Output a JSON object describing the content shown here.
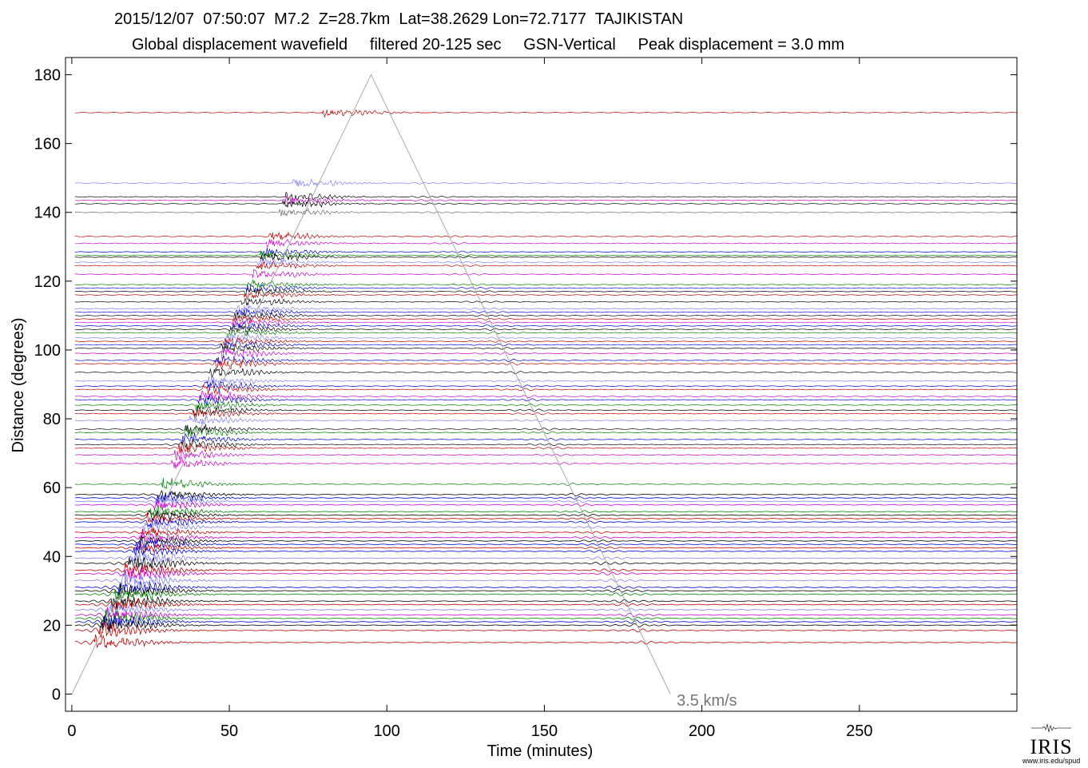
{
  "header": {
    "line1": "2015/12/07  07:50:07  M7.2  Z=28.7km  Lat=38.2629 Lon=72.7177  TAJIKISTAN",
    "line2": "Global displacement wavefield     filtered 20-125 sec     GSN-Vertical     Peak displacement = 3.0 mm"
  },
  "logo": {
    "word": "IRIS",
    "url": "www.iris.edu/spud"
  },
  "chart_data": {
    "type": "line",
    "xlabel": "Time (minutes)",
    "ylabel": "Distance (degrees)",
    "xlim": [
      -2,
      300
    ],
    "ylim": [
      -5,
      185
    ],
    "xticks": [
      "0",
      "50",
      "100",
      "150",
      "200",
      "250"
    ],
    "yticks": [
      "0",
      "20",
      "40",
      "60",
      "80",
      "100",
      "120",
      "140",
      "160",
      "180"
    ],
    "grid": false,
    "annotation": {
      "text": "3.5 km/s",
      "x": 192,
      "y": -2
    },
    "velocity_line": {
      "label": "3.5 km/s",
      "points": [
        [
          0,
          0
        ],
        [
          95,
          180
        ],
        [
          190,
          0
        ]
      ]
    },
    "trace_colors": [
      "#000000",
      "#c00000",
      "#0000e0",
      "#008000",
      "#d000d0",
      "#8080ff",
      "#707070"
    ],
    "traces": [
      {
        "distance": 169,
        "color": "#c00000"
      },
      {
        "distance": 148.5,
        "color": "#8080ff"
      },
      {
        "distance": 144.5,
        "color": "#000000"
      },
      {
        "distance": 143.5,
        "color": "#d000d0"
      },
      {
        "distance": 142.5,
        "color": "#000000"
      },
      {
        "distance": 140,
        "color": "#707070"
      },
      {
        "distance": 133,
        "color": "#c00000"
      },
      {
        "distance": 131,
        "color": "#d000d0"
      },
      {
        "distance": 128.5,
        "color": "#0000e0"
      },
      {
        "distance": 127.5,
        "color": "#008000"
      },
      {
        "distance": 127,
        "color": "#000000"
      },
      {
        "distance": 125.5,
        "color": "#8080ff"
      },
      {
        "distance": 124.5,
        "color": "#c00000"
      },
      {
        "distance": 122,
        "color": "#d000d0"
      },
      {
        "distance": 119,
        "color": "#008000"
      },
      {
        "distance": 118,
        "color": "#0000e0"
      },
      {
        "distance": 117,
        "color": "#000000"
      },
      {
        "distance": 116,
        "color": "#c00000"
      },
      {
        "distance": 114,
        "color": "#000000"
      },
      {
        "distance": 112,
        "color": "#8080ff"
      },
      {
        "distance": 111,
        "color": "#0000e0"
      },
      {
        "distance": 110,
        "color": "#000000"
      },
      {
        "distance": 109,
        "color": "#c00000"
      },
      {
        "distance": 108,
        "color": "#d000d0"
      },
      {
        "distance": 107,
        "color": "#0000e0"
      },
      {
        "distance": 106,
        "color": "#000000"
      },
      {
        "distance": 105,
        "color": "#008000"
      },
      {
        "distance": 103.5,
        "color": "#8080ff"
      },
      {
        "distance": 102.5,
        "color": "#c00000"
      },
      {
        "distance": 101.5,
        "color": "#0000e0"
      },
      {
        "distance": 100.5,
        "color": "#000000"
      },
      {
        "distance": 99,
        "color": "#d000d0"
      },
      {
        "distance": 97,
        "color": "#0000e0"
      },
      {
        "distance": 96,
        "color": "#c00000"
      },
      {
        "distance": 93.5,
        "color": "#000000"
      },
      {
        "distance": 91,
        "color": "#8080ff"
      },
      {
        "distance": 89.5,
        "color": "#0000e0"
      },
      {
        "distance": 88.5,
        "color": "#c00000"
      },
      {
        "distance": 86.5,
        "color": "#d000d0"
      },
      {
        "distance": 85.5,
        "color": "#0000e0"
      },
      {
        "distance": 84,
        "color": "#008000"
      },
      {
        "distance": 82.5,
        "color": "#000000"
      },
      {
        "distance": 81.5,
        "color": "#c00000"
      },
      {
        "distance": 79.5,
        "color": "#8080ff"
      },
      {
        "distance": 77,
        "color": "#000000"
      },
      {
        "distance": 76,
        "color": "#008000"
      },
      {
        "distance": 74,
        "color": "#0000e0"
      },
      {
        "distance": 72.5,
        "color": "#000000"
      },
      {
        "distance": 71.5,
        "color": "#c00000"
      },
      {
        "distance": 69.5,
        "color": "#d000d0"
      },
      {
        "distance": 67,
        "color": "#d000d0"
      },
      {
        "distance": 61,
        "color": "#008000"
      },
      {
        "distance": 58,
        "color": "#000000"
      },
      {
        "distance": 57,
        "color": "#0000e0"
      },
      {
        "distance": 56,
        "color": "#8080ff"
      },
      {
        "distance": 55,
        "color": "#d000d0"
      },
      {
        "distance": 53,
        "color": "#008000"
      },
      {
        "distance": 52,
        "color": "#000000"
      },
      {
        "distance": 51,
        "color": "#c00000"
      },
      {
        "distance": 50,
        "color": "#0000e0"
      },
      {
        "distance": 48.5,
        "color": "#8080ff"
      },
      {
        "distance": 47,
        "color": "#c00000"
      },
      {
        "distance": 45.5,
        "color": "#d000d0"
      },
      {
        "distance": 44.5,
        "color": "#000000"
      },
      {
        "distance": 43.5,
        "color": "#0000e0"
      },
      {
        "distance": 42.5,
        "color": "#c00000"
      },
      {
        "distance": 41.5,
        "color": "#0000e0"
      },
      {
        "distance": 39.5,
        "color": "#8080ff"
      },
      {
        "distance": 38,
        "color": "#000000"
      },
      {
        "distance": 36,
        "color": "#c00000"
      },
      {
        "distance": 35,
        "color": "#d000d0"
      },
      {
        "distance": 33,
        "color": "#8080ff"
      },
      {
        "distance": 31,
        "color": "#0000e0"
      },
      {
        "distance": 30,
        "color": "#000000"
      },
      {
        "distance": 29,
        "color": "#008000"
      },
      {
        "distance": 27,
        "color": "#000000"
      },
      {
        "distance": 26,
        "color": "#c00000"
      },
      {
        "distance": 24.5,
        "color": "#8080ff"
      },
      {
        "distance": 23,
        "color": "#d000d0"
      },
      {
        "distance": 22,
        "color": "#008000"
      },
      {
        "distance": 21,
        "color": "#0000e0"
      },
      {
        "distance": 20,
        "color": "#000000"
      },
      {
        "distance": 18.5,
        "color": "#c00000"
      },
      {
        "distance": 15,
        "color": "#c00000"
      }
    ]
  }
}
